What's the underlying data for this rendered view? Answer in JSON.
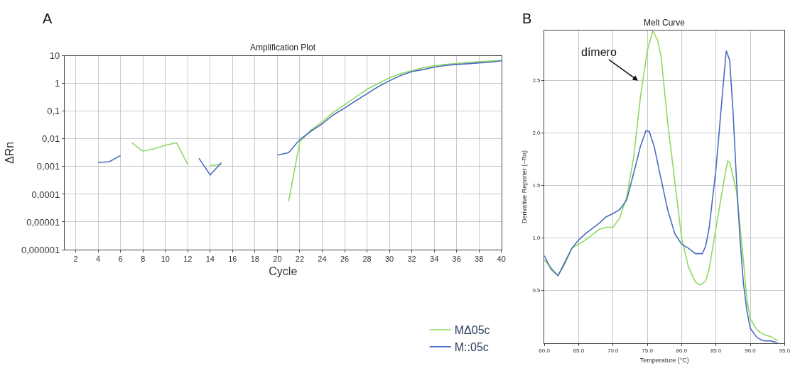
{
  "chart_data": [
    {
      "type": "line",
      "title": "Amplification Plot",
      "xlabel": "Cycle",
      "ylabel": "ΔRn",
      "log": "y",
      "grid": true,
      "legend": "bottom right",
      "annotations": [
        "A"
      ],
      "xlim": [
        1,
        40
      ],
      "xticks": [
        2,
        4,
        6,
        8,
        10,
        12,
        14,
        16,
        18,
        20,
        22,
        24,
        26,
        28,
        30,
        32,
        34,
        36,
        38,
        40
      ],
      "ylim": [
        1e-06,
        10
      ],
      "yticks": [
        {
          "value": 1e-06,
          "label": "0,000001"
        },
        {
          "value": 1e-05,
          "label": "0,00001"
        },
        {
          "value": 0.0001,
          "label": "0,0001"
        },
        {
          "value": 0.001,
          "label": "0,001"
        },
        {
          "value": 0.01,
          "label": "0,01"
        },
        {
          "value": 0.1,
          "label": "0,1"
        },
        1,
        10
      ],
      "x": [
        4,
        5,
        6,
        7,
        8,
        9,
        10,
        11,
        12,
        13,
        14,
        15,
        16,
        17,
        18,
        19,
        20,
        21,
        22,
        23,
        24,
        25,
        26,
        27,
        28,
        29,
        30,
        31,
        32,
        33,
        34,
        35,
        36,
        37,
        38,
        39,
        40
      ],
      "series": [
        {
          "name": "MΔ05c",
          "color": "#90d860",
          "values": [
            null,
            null,
            null,
            0.0072,
            0.0036,
            0.0044,
            0.0059,
            0.0072,
            0.0012,
            null,
            0.0011,
            0.0012,
            null,
            null,
            null,
            null,
            null,
            5.5e-05,
            0.0078,
            0.021,
            0.041,
            0.091,
            0.17,
            0.33,
            0.62,
            1.0,
            1.6,
            2.3,
            2.9,
            3.7,
            4.4,
            4.9,
            5.3,
            5.8,
            6.1,
            6.5,
            6.8
          ]
        },
        {
          "name": "M::05c",
          "color": "#4a6cc0",
          "values": [
            0.0014,
            0.0015,
            0.0025,
            null,
            null,
            null,
            null,
            null,
            null,
            0.002,
            0.0005,
            0.0014,
            null,
            null,
            null,
            null,
            0.0026,
            0.0032,
            0.0095,
            0.019,
            0.035,
            0.074,
            0.13,
            0.24,
            0.43,
            0.77,
            1.26,
            1.95,
            2.7,
            3.2,
            3.9,
            4.5,
            4.9,
            5.2,
            5.6,
            5.9,
            6.6
          ]
        }
      ]
    },
    {
      "type": "line",
      "title": "Melt Curve",
      "xlabel": "Temperature (°C)",
      "ylabel": "Derivative Reporter (−Rn)",
      "grid": true,
      "annotations": [
        "B",
        "dímero"
      ],
      "xlim": [
        60,
        95
      ],
      "xticks": [
        {
          "value": 60,
          "label": "60.0"
        },
        {
          "value": 65,
          "label": "65.0"
        },
        {
          "value": 70,
          "label": "70.0"
        },
        {
          "value": 75,
          "label": "75.0"
        },
        {
          "value": 80,
          "label": "80.0"
        },
        {
          "value": 85,
          "label": "85.0"
        },
        {
          "value": 90,
          "label": "90.0"
        },
        {
          "value": 95,
          "label": "95.0"
        }
      ],
      "ylim": [
        0,
        2.97
      ],
      "yticks": [
        0.5,
        {
          "value": 1,
          "label": "1.0"
        },
        1.5,
        {
          "value": 2,
          "label": "2.0"
        },
        2.5
      ],
      "series": [
        {
          "color": "#90d860",
          "x": [
            60,
            62,
            63,
            64,
            65,
            66,
            67,
            68,
            69,
            70,
            71,
            72,
            73,
            74,
            75,
            75.8,
            76.5,
            77,
            78,
            79,
            80,
            81,
            82,
            82.7,
            83.5,
            84,
            85,
            86,
            86.7,
            87,
            88,
            89,
            89.5,
            90,
            91,
            92,
            93,
            94
          ],
          "values": [
            0.79,
            0.64,
            0.75,
            0.9,
            0.94,
            0.98,
            1.03,
            1.08,
            1.1,
            1.1,
            1.19,
            1.39,
            1.76,
            2.34,
            2.78,
            2.97,
            2.88,
            2.73,
            2.08,
            1.54,
            1.0,
            0.72,
            0.58,
            0.55,
            0.59,
            0.7,
            1.09,
            1.48,
            1.73,
            1.72,
            1.44,
            0.79,
            0.42,
            0.23,
            0.12,
            0.08,
            0.06,
            0.02
          ]
        },
        {
          "color": "#4a6cc0",
          "x": [
            60,
            61,
            62,
            63,
            64,
            65,
            66,
            67,
            68,
            69,
            70,
            71,
            72,
            73,
            74,
            74.8,
            75.3,
            76,
            77,
            78,
            79,
            80,
            81,
            82,
            83,
            83.5,
            84,
            85,
            86,
            86.5,
            87,
            87.5,
            88,
            88.5,
            89,
            89.5,
            90,
            91,
            92,
            93,
            94
          ],
          "values": [
            0.83,
            0.7,
            0.64,
            0.77,
            0.9,
            0.98,
            1.04,
            1.09,
            1.14,
            1.2,
            1.23,
            1.27,
            1.36,
            1.61,
            1.87,
            2.02,
            2.01,
            1.87,
            1.56,
            1.26,
            1.04,
            0.94,
            0.9,
            0.85,
            0.85,
            0.92,
            1.09,
            1.65,
            2.41,
            2.78,
            2.69,
            2.19,
            1.54,
            1.0,
            0.57,
            0.31,
            0.14,
            0.05,
            0.02,
            0.02,
            0.0
          ]
        }
      ]
    }
  ]
}
